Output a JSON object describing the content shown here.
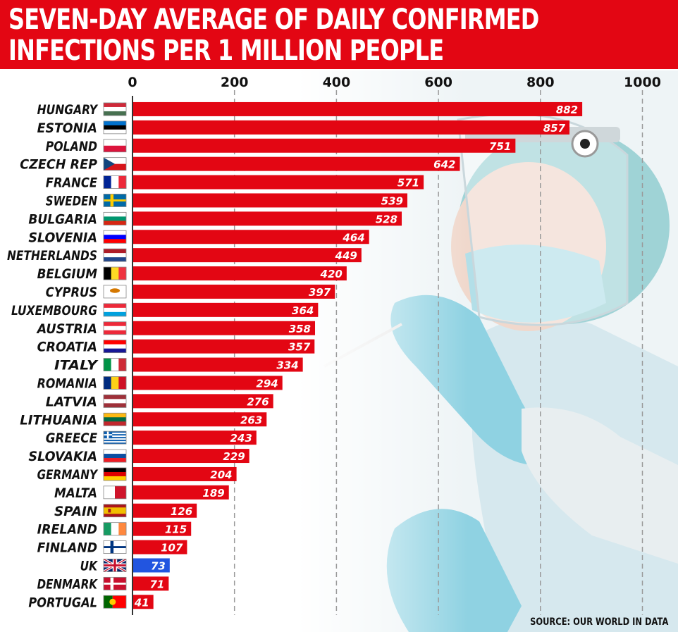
{
  "title": {
    "line1": "SEVEN-DAY AVERAGE OF DAILY CONFIRMED",
    "line2": "INFECTIONS PER 1 MILLION PEOPLE"
  },
  "source": "SOURCE: OUR WORLD IN DATA",
  "colors": {
    "bar": "#e30613",
    "highlight": "#2255e0",
    "title_bg": "#e30613"
  },
  "chart_data": {
    "type": "bar",
    "orientation": "horizontal",
    "xlim": [
      0,
      1000
    ],
    "ticks": [
      "0",
      "200",
      "400",
      "600",
      "800",
      "1000"
    ],
    "grid": "dashed vertical at 200, 400, 600, 800, 1000",
    "categories": [
      "HUNGARY",
      "ESTONIA",
      "POLAND",
      "CZECH REP",
      "FRANCE",
      "SWEDEN",
      "BULGARIA",
      "SLOVENIA",
      "NETHERLANDS",
      "BELGIUM",
      "CYPRUS",
      "LUXEMBOURG",
      "AUSTRIA",
      "CROATIA",
      "ITALY",
      "ROMANIA",
      "LATVIA",
      "LITHUANIA",
      "GREECE",
      "SLOVAKIA",
      "GERMANY",
      "MALTA",
      "SPAIN",
      "IRELAND",
      "FINLAND",
      "UK",
      "DENMARK",
      "PORTUGAL"
    ],
    "values": [
      882,
      857,
      751,
      642,
      571,
      539,
      528,
      464,
      449,
      420,
      397,
      364,
      358,
      357,
      334,
      294,
      276,
      263,
      243,
      229,
      204,
      189,
      126,
      115,
      107,
      73,
      71,
      41
    ],
    "highlight": "UK"
  }
}
